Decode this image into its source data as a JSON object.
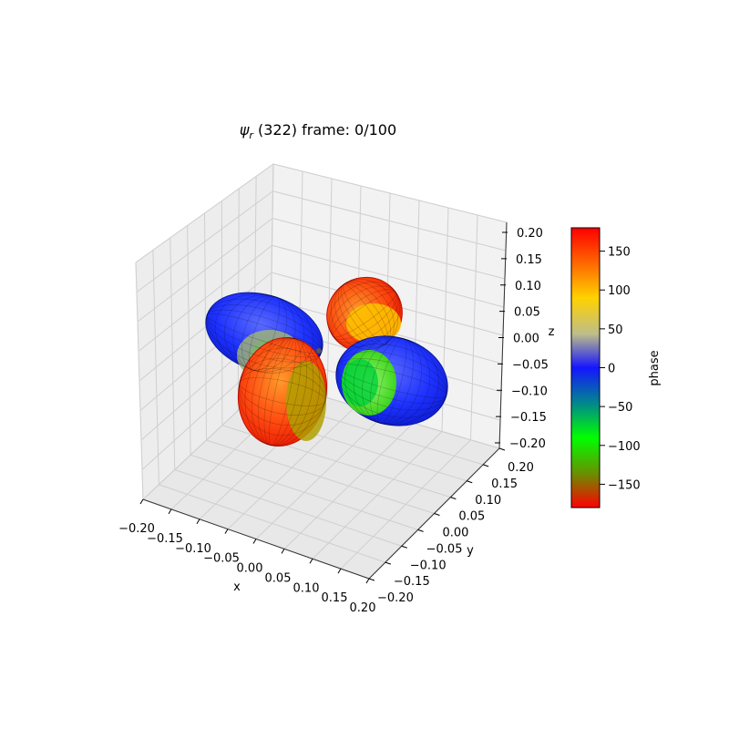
{
  "chart_data": {
    "type": "surface3d",
    "title": {
      "symbol": "ψ",
      "subscript": "r",
      "text": " (322) frame: 0/100"
    },
    "xlabel": "x",
    "ylabel": "y",
    "zlabel": "z",
    "xlim": [
      -0.2,
      0.2
    ],
    "ylim": [
      -0.2,
      0.2
    ],
    "zlim": [
      -0.2,
      0.2
    ],
    "x_ticks": [
      "−0.20",
      "−0.15",
      "−0.10",
      "−0.05",
      "0.00",
      "0.05",
      "0.10",
      "0.15",
      "0.20"
    ],
    "y_ticks": [
      "−0.20",
      "−0.15",
      "−0.10",
      "−0.05",
      "0.00",
      "0.05",
      "0.10",
      "0.15",
      "0.20"
    ],
    "z_ticks": [
      "0.20",
      "0.15",
      "0.10",
      "0.05",
      "0.00",
      "−0.05",
      "−0.10",
      "−0.15",
      "−0.20"
    ],
    "grid": true,
    "lobes": [
      {
        "name": "lobe-upper-left",
        "phase": 0
      },
      {
        "name": "lobe-upper-right",
        "phase": 180
      },
      {
        "name": "lobe-lower-left",
        "phase": 180
      },
      {
        "name": "lobe-lower-right",
        "phase": 0
      }
    ],
    "colorbar": {
      "label": "phase",
      "min": -180,
      "max": 180,
      "ticks": [
        "150",
        "100",
        "50",
        "0",
        "−50",
        "−100",
        "−150"
      ],
      "colors": [
        "#ff0000",
        "#ff6a00",
        "#ffd200",
        "#bdbd8a",
        "#1515ff",
        "#008a8a",
        "#00ff00",
        "#6b8e00",
        "#ff0000"
      ]
    }
  }
}
